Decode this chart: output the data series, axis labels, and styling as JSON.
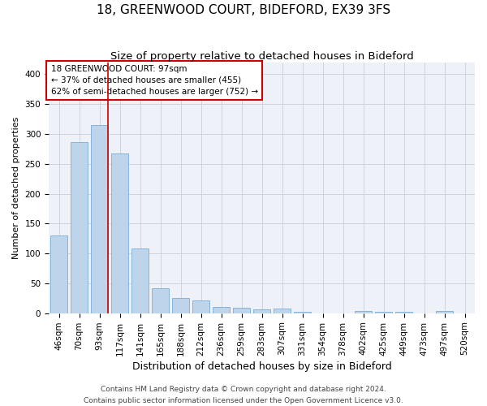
{
  "title": "18, GREENWOOD COURT, BIDEFORD, EX39 3FS",
  "subtitle": "Size of property relative to detached houses in Bideford",
  "xlabel": "Distribution of detached houses by size in Bideford",
  "ylabel": "Number of detached properties",
  "categories": [
    "46sqm",
    "70sqm",
    "93sqm",
    "117sqm",
    "141sqm",
    "165sqm",
    "188sqm",
    "212sqm",
    "236sqm",
    "259sqm",
    "283sqm",
    "307sqm",
    "331sqm",
    "354sqm",
    "378sqm",
    "402sqm",
    "425sqm",
    "449sqm",
    "473sqm",
    "497sqm",
    "520sqm"
  ],
  "values": [
    130,
    287,
    315,
    268,
    108,
    42,
    26,
    22,
    10,
    9,
    7,
    8,
    3,
    0,
    0,
    4,
    3,
    3,
    0,
    4,
    0
  ],
  "bar_color": "#bdd4ea",
  "bar_edge_color": "#7aaed6",
  "red_line_index": 2,
  "annotation_text": "18 GREENWOOD COURT: 97sqm\n← 37% of detached houses are smaller (455)\n62% of semi-detached houses are larger (752) →",
  "annotation_box_color": "#ffffff",
  "annotation_box_edge_color": "#cc0000",
  "red_line_color": "#cc0000",
  "footnote1": "Contains HM Land Registry data © Crown copyright and database right 2024.",
  "footnote2": "Contains public sector information licensed under the Open Government Licence v3.0.",
  "ylim": [
    0,
    420
  ],
  "yticks": [
    0,
    50,
    100,
    150,
    200,
    250,
    300,
    350,
    400
  ],
  "title_fontsize": 11,
  "subtitle_fontsize": 9.5,
  "xlabel_fontsize": 9,
  "ylabel_fontsize": 8,
  "tick_fontsize": 7.5,
  "annotation_fontsize": 7.5,
  "footnote_fontsize": 6.5,
  "background_color": "#ffffff",
  "ax_background_color": "#eef2f8",
  "grid_color": "#c8d0dc"
}
